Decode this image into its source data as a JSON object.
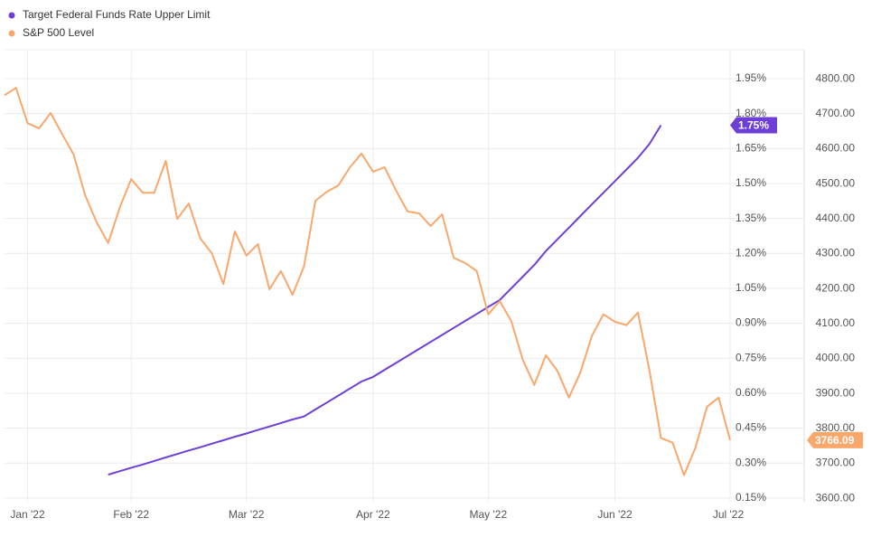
{
  "chart_data": {
    "type": "line",
    "categories": [
      null,
      null,
      "Jan '22",
      null,
      null,
      null,
      null,
      null,
      null,
      null,
      null,
      "Feb '22",
      null,
      null,
      null,
      null,
      null,
      null,
      null,
      null,
      null,
      "Mar '22",
      null,
      null,
      null,
      null,
      null,
      null,
      null,
      null,
      null,
      null,
      "Apr '22",
      null,
      null,
      null,
      null,
      null,
      null,
      null,
      null,
      null,
      "May '22",
      null,
      null,
      null,
      null,
      null,
      null,
      null,
      null,
      null,
      null,
      "Jun '22",
      null,
      null,
      null,
      null,
      null,
      null,
      null,
      null,
      null,
      "Jul '22"
    ],
    "series": [
      {
        "name": "Target Federal Funds Rate Upper Limit",
        "color": "#6e3fd6",
        "flag_label": "1.75%",
        "values": [
          null,
          null,
          null,
          null,
          null,
          null,
          null,
          null,
          null,
          0.25,
          0.265,
          0.28,
          0.294,
          0.309,
          0.324,
          0.339,
          0.354,
          0.368,
          0.383,
          0.398,
          0.413,
          0.427,
          0.442,
          0.457,
          0.472,
          0.487,
          0.5,
          0.53,
          0.56,
          0.59,
          0.62,
          0.65,
          0.67,
          0.7,
          0.73,
          0.76,
          0.79,
          0.82,
          0.85,
          0.88,
          0.91,
          0.94,
          0.97,
          1.0,
          1.05,
          1.1,
          1.15,
          1.21,
          1.26,
          1.31,
          1.36,
          1.41,
          1.46,
          1.51,
          1.56,
          1.61,
          1.67,
          1.75,
          null,
          null,
          null,
          null,
          null,
          null
        ]
      },
      {
        "name": "S&P 500 Level",
        "color": "#f9a76b",
        "axis": "y2",
        "flag_label": "3766.09",
        "values": [
          4753,
          4774,
          4673,
          4658,
          4702,
          4642,
          4583,
          4467,
          4389,
          4330,
          4431,
          4513,
          4474,
          4474,
          4565,
          4399,
          4443,
          4343,
          4301,
          4213,
          4363,
          4294,
          4327,
          4198,
          4250,
          4182,
          4263,
          4451,
          4477,
          4495,
          4547,
          4586,
          4534,
          4547,
          4480,
          4420,
          4415,
          4379,
          4412,
          4288,
          4273,
          4250,
          4126,
          4164,
          4107,
          3996,
          3924,
          4009,
          3965,
          3888,
          3960,
          4064,
          4126,
          4105,
          4095,
          4131,
          3965,
          3772,
          3759,
          3666,
          3746,
          3862,
          3888,
          3766.09
        ]
      }
    ],
    "ylim": [
      0.134,
      2.074
    ],
    "yticks": [
      {
        "value": 0.15,
        "label": "0.15%"
      },
      {
        "value": 0.3,
        "label": "0.30%"
      },
      {
        "value": 0.45,
        "label": "0.45%"
      },
      {
        "value": 0.6,
        "label": "0.60%"
      },
      {
        "value": 0.75,
        "label": "0.75%"
      },
      {
        "value": 0.9,
        "label": "0.90%"
      },
      {
        "value": 1.05,
        "label": "1.05%"
      },
      {
        "value": 1.2,
        "label": "1.20%"
      },
      {
        "value": 1.35,
        "label": "1.35%"
      },
      {
        "value": 1.5,
        "label": "1.50%"
      },
      {
        "value": 1.65,
        "label": "1.65%"
      },
      {
        "value": 1.8,
        "label": "1.80%"
      },
      {
        "value": 1.95,
        "label": "1.95%"
      }
    ],
    "y2lim": [
      3590,
      4883
    ],
    "y2ticks": [
      {
        "value": 3600,
        "label": "3600.00"
      },
      {
        "value": 3700,
        "label": "3700.00"
      },
      {
        "value": 3800,
        "label": "3800.00"
      },
      {
        "value": 3900,
        "label": "3900.00"
      },
      {
        "value": 4000,
        "label": "4000.00"
      },
      {
        "value": 4100,
        "label": "4100.00"
      },
      {
        "value": 4200,
        "label": "4200.00"
      },
      {
        "value": 4300,
        "label": "4300.00"
      },
      {
        "value": 4400,
        "label": "4400.00"
      },
      {
        "value": 4500,
        "label": "4500.00"
      },
      {
        "value": 4600,
        "label": "4600.00"
      },
      {
        "value": 4700,
        "label": "4700.00"
      },
      {
        "value": 4800,
        "label": "4800.00"
      }
    ],
    "grid": true,
    "legend": "top-left"
  }
}
